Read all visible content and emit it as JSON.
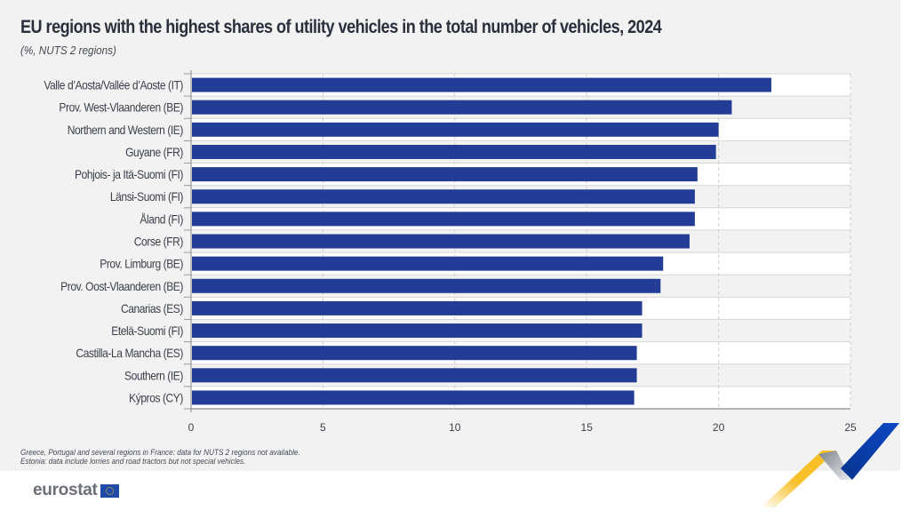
{
  "header": {
    "title": "EU regions with the highest shares of utility vehicles in the total number of vehicles, 2024",
    "subtitle": "(%, NUTS 2 regions)"
  },
  "notes": [
    "Greece, Portugal and several regions in France: data for NUTS 2 regions not available.",
    "Estonia: data include lorries and road tractors but not special vehicles."
  ],
  "logo": {
    "text": "eurostat",
    "icon": "eu-flag-icon"
  },
  "colors": {
    "bar": "#233d96",
    "panel": "#f2f2f2",
    "band_alt": "#ffffff",
    "deco_yellow": "#f7c12b",
    "deco_blue": "#0b44b8",
    "deco_grey": "#9aa0a8"
  },
  "chart_data": {
    "type": "bar",
    "orientation": "horizontal",
    "title": "EU regions with the highest shares of utility vehicles in the total number of vehicles, 2024",
    "subtitle": "(%, NUTS 2 regions)",
    "xlabel": "",
    "ylabel": "",
    "xlim": [
      0,
      25
    ],
    "xticks": [
      0,
      5,
      10,
      15,
      20,
      25
    ],
    "grid": "vertical dashed",
    "legend": "none",
    "categories": [
      "Valle d’Aosta/Vallée d’Aoste (IT)",
      "Prov. West-Vlaanderen (BE)",
      "Northern and Western (IE)",
      "Guyane (FR)",
      "Pohjois- ja Itä-Suomi (FI)",
      "Länsi-Suomi (FI)",
      "Åland (FI)",
      "Corse (FR)",
      "Prov. Limburg (BE)",
      "Prov. Oost-Vlaanderen (BE)",
      "Canarias (ES)",
      "Etelä-Suomi (FI)",
      "Castilla-La Mancha (ES)",
      "Southern (IE)",
      "Kýpros (CY)"
    ],
    "values": [
      22.0,
      20.5,
      20.0,
      19.9,
      19.2,
      19.1,
      19.1,
      18.9,
      17.9,
      17.8,
      17.1,
      17.1,
      16.9,
      16.9,
      16.8
    ]
  }
}
